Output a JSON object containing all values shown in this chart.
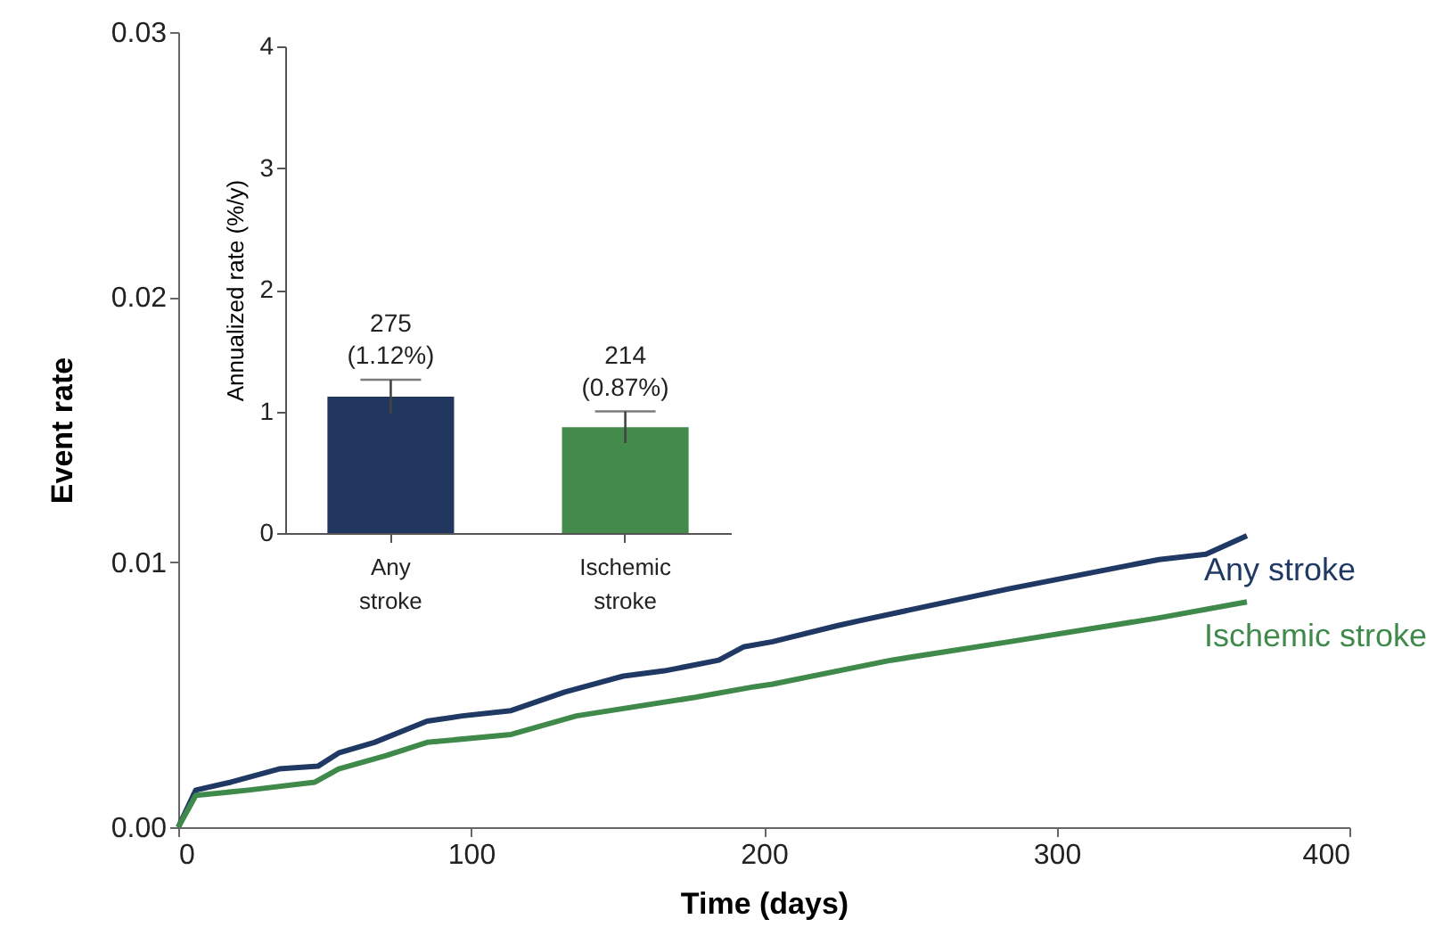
{
  "chart_data": [
    {
      "type": "line",
      "xlabel": "Time (days)",
      "ylabel": "Event rate",
      "xlim": [
        0,
        400
      ],
      "xticks": [
        0,
        100,
        200,
        300,
        400
      ],
      "ylim": [
        0,
        0.03
      ],
      "yticks": [
        {
          "value": 0,
          "label": "0.00"
        },
        {
          "value": 0.01,
          "label": "0.01"
        },
        {
          "value": 0.02,
          "label": "0.02"
        },
        {
          "value": 0.03,
          "label": "0.03"
        }
      ],
      "series": [
        {
          "name": "Any stroke",
          "color": "#1f3864",
          "x": [
            0,
            6,
            18,
            34.5,
            47.7,
            54.8,
            67,
            85,
            97,
            113.7,
            132,
            152,
            166,
            184.6,
            193,
            203,
            225,
            233,
            284,
            335,
            351,
            365
          ],
          "values": [
            0,
            0.0014,
            0.0017,
            0.0022,
            0.0023,
            0.0028,
            0.0032,
            0.004,
            0.0042,
            0.0044,
            0.0051,
            0.0057,
            0.0059,
            0.0063,
            0.0068,
            0.007,
            0.0076,
            0.0078,
            0.009,
            0.0101,
            0.0103,
            0.011
          ]
        },
        {
          "name": "Ischemic stroke",
          "color": "#3f8a4a",
          "x": [
            0,
            6,
            24,
            46.7,
            54.8,
            71,
            85,
            113.7,
            136,
            176.6,
            196.8,
            203,
            243.5,
            284,
            335,
            365
          ],
          "values": [
            0,
            0.0012,
            0.0014,
            0.0017,
            0.0022,
            0.0027,
            0.0032,
            0.0035,
            0.0042,
            0.0049,
            0.0053,
            0.0054,
            0.0063,
            0.007,
            0.0079,
            0.0085
          ]
        }
      ]
    },
    {
      "type": "bar",
      "ylabel": "Annualized rate (%/y)",
      "categories": [
        "Any stroke",
        "Ischemic stroke"
      ],
      "values": [
        1.12,
        0.87
      ],
      "colors": [
        "#22375f",
        "#438a4b"
      ],
      "errors": [
        0.14,
        0.13
      ],
      "value_labels": [
        "275 (1.12%)",
        "214 (0.87%)"
      ],
      "ylim": [
        0,
        4
      ],
      "yticks": [
        0,
        1,
        2,
        3,
        4
      ]
    }
  ]
}
